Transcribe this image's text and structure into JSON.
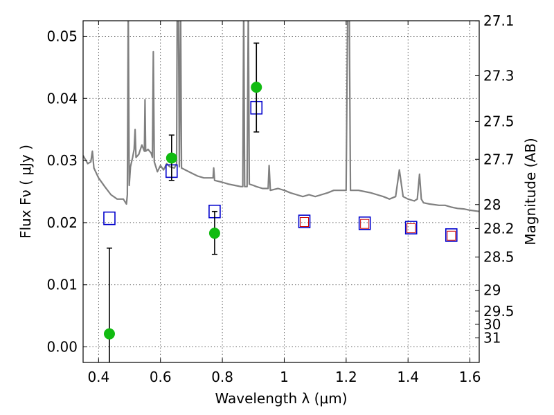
{
  "chart_data": {
    "type": "scatter",
    "xlabel": "Wavelength  λ (μm)",
    "ylabel": "Flux  Fν  ( μJy )",
    "ylabel_right": "Magnitude (AB)",
    "xlim": [
      0.35,
      1.63
    ],
    "ylim": [
      -0.0025,
      0.0525
    ],
    "grid": true,
    "x_ticks": [
      0.4,
      0.6,
      0.8,
      1.0,
      1.2,
      1.4,
      1.6
    ],
    "x_tick_labels": [
      "0.4",
      "0.6",
      "0.8",
      "1",
      "1.2",
      "1.4",
      "1.6"
    ],
    "y_ticks": [
      0.0,
      0.01,
      0.02,
      0.03,
      0.04,
      0.05
    ],
    "y_tick_labels": [
      "0.00",
      "0.01",
      "0.02",
      "0.03",
      "0.04",
      "0.05"
    ],
    "right_ticks": [
      {
        "label": "27.1",
        "mag": 27.1
      },
      {
        "label": "27.3",
        "mag": 27.3
      },
      {
        "label": "27.5",
        "mag": 27.5
      },
      {
        "label": "27.7",
        "mag": 27.7
      },
      {
        "label": "28",
        "mag": 28.0
      },
      {
        "label": "28.2",
        "mag": 28.2
      },
      {
        "label": "28.5",
        "mag": 28.5
      },
      {
        "label": "29",
        "mag": 29.0
      },
      {
        "label": "29.5",
        "mag": 29.5
      },
      {
        "label": "30",
        "mag": 30.0
      },
      {
        "label": "31",
        "mag": 31.0
      }
    ],
    "series": [
      {
        "kind": "observed",
        "points": [
          {
            "x": 0.435,
            "y": 0.0021,
            "yerr_low": 0.0141,
            "yerr_high": 0.0138
          },
          {
            "x": 0.636,
            "y": 0.0304,
            "yerr_low": 0.0036,
            "yerr_high": 0.0037
          },
          {
            "x": 0.775,
            "y": 0.0183,
            "yerr_low": 0.0034,
            "yerr_high": 0.0035
          },
          {
            "x": 0.91,
            "y": 0.0418,
            "yerr_low": 0.0072,
            "yerr_high": 0.0071
          }
        ]
      },
      {
        "kind": "model_photometry",
        "points": [
          {
            "x": 0.435,
            "y": 0.0207
          },
          {
            "x": 0.636,
            "y": 0.0283
          },
          {
            "x": 0.775,
            "y": 0.0218
          },
          {
            "x": 0.91,
            "y": 0.0385
          },
          {
            "x": 1.065,
            "y": 0.0202
          },
          {
            "x": 1.26,
            "y": 0.0199
          },
          {
            "x": 1.41,
            "y": 0.0192
          },
          {
            "x": 1.54,
            "y": 0.018
          }
        ]
      },
      {
        "kind": "model_photometry_inner",
        "points": [
          {
            "x": 1.065,
            "y": 0.0201
          },
          {
            "x": 1.26,
            "y": 0.0198
          },
          {
            "x": 1.41,
            "y": 0.0191
          },
          {
            "x": 1.54,
            "y": 0.0179
          }
        ]
      },
      {
        "kind": "model_spectrum",
        "points": [
          {
            "x": 0.35,
            "y": 0.0308
          },
          {
            "x": 0.365,
            "y": 0.0295
          },
          {
            "x": 0.375,
            "y": 0.0298
          },
          {
            "x": 0.38,
            "y": 0.0315
          },
          {
            "x": 0.385,
            "y": 0.0288
          },
          {
            "x": 0.4,
            "y": 0.0272
          },
          {
            "x": 0.42,
            "y": 0.0258
          },
          {
            "x": 0.44,
            "y": 0.0245
          },
          {
            "x": 0.46,
            "y": 0.0238
          },
          {
            "x": 0.48,
            "y": 0.0238
          },
          {
            "x": 0.49,
            "y": 0.023
          },
          {
            "x": 0.493,
            "y": 0.0245
          },
          {
            "x": 0.496,
            "y": 0.055
          },
          {
            "x": 0.499,
            "y": 0.026
          },
          {
            "x": 0.503,
            "y": 0.029
          },
          {
            "x": 0.51,
            "y": 0.0305
          },
          {
            "x": 0.515,
            "y": 0.0318
          },
          {
            "x": 0.518,
            "y": 0.035
          },
          {
            "x": 0.521,
            "y": 0.0305
          },
          {
            "x": 0.53,
            "y": 0.031
          },
          {
            "x": 0.54,
            "y": 0.0325
          },
          {
            "x": 0.548,
            "y": 0.0315
          },
          {
            "x": 0.55,
            "y": 0.0398
          },
          {
            "x": 0.552,
            "y": 0.0315
          },
          {
            "x": 0.56,
            "y": 0.0318
          },
          {
            "x": 0.57,
            "y": 0.0312
          },
          {
            "x": 0.574,
            "y": 0.0305
          },
          {
            "x": 0.577,
            "y": 0.0475
          },
          {
            "x": 0.58,
            "y": 0.0298
          },
          {
            "x": 0.59,
            "y": 0.0282
          },
          {
            "x": 0.6,
            "y": 0.0292
          },
          {
            "x": 0.61,
            "y": 0.0285
          },
          {
            "x": 0.62,
            "y": 0.0295
          },
          {
            "x": 0.63,
            "y": 0.029
          },
          {
            "x": 0.645,
            "y": 0.0288
          },
          {
            "x": 0.652,
            "y": 0.0295
          },
          {
            "x": 0.654,
            "y": 0.055
          },
          {
            "x": 0.658,
            "y": 0.055
          },
          {
            "x": 0.661,
            "y": 0.029
          },
          {
            "x": 0.665,
            "y": 0.055
          },
          {
            "x": 0.668,
            "y": 0.0288
          },
          {
            "x": 0.68,
            "y": 0.0285
          },
          {
            "x": 0.7,
            "y": 0.028
          },
          {
            "x": 0.72,
            "y": 0.0275
          },
          {
            "x": 0.74,
            "y": 0.0272
          },
          {
            "x": 0.76,
            "y": 0.0272
          },
          {
            "x": 0.77,
            "y": 0.0272
          },
          {
            "x": 0.772,
            "y": 0.0288
          },
          {
            "x": 0.775,
            "y": 0.0268
          },
          {
            "x": 0.8,
            "y": 0.0265
          },
          {
            "x": 0.82,
            "y": 0.0262
          },
          {
            "x": 0.84,
            "y": 0.026
          },
          {
            "x": 0.86,
            "y": 0.0258
          },
          {
            "x": 0.866,
            "y": 0.0258
          },
          {
            "x": 0.869,
            "y": 0.055
          },
          {
            "x": 0.872,
            "y": 0.0258
          },
          {
            "x": 0.88,
            "y": 0.0258
          },
          {
            "x": 0.884,
            "y": 0.055
          },
          {
            "x": 0.887,
            "y": 0.0262
          },
          {
            "x": 0.9,
            "y": 0.026
          },
          {
            "x": 0.91,
            "y": 0.0258
          },
          {
            "x": 0.93,
            "y": 0.0255
          },
          {
            "x": 0.948,
            "y": 0.0255
          },
          {
            "x": 0.951,
            "y": 0.0292
          },
          {
            "x": 0.955,
            "y": 0.0252
          },
          {
            "x": 0.98,
            "y": 0.0255
          },
          {
            "x": 1.0,
            "y": 0.0252
          },
          {
            "x": 1.02,
            "y": 0.0248
          },
          {
            "x": 1.04,
            "y": 0.0245
          },
          {
            "x": 1.06,
            "y": 0.0242
          },
          {
            "x": 1.08,
            "y": 0.0245
          },
          {
            "x": 1.1,
            "y": 0.0242
          },
          {
            "x": 1.12,
            "y": 0.0245
          },
          {
            "x": 1.14,
            "y": 0.0248
          },
          {
            "x": 1.16,
            "y": 0.0252
          },
          {
            "x": 1.18,
            "y": 0.0252
          },
          {
            "x": 1.2,
            "y": 0.0252
          },
          {
            "x": 1.205,
            "y": 0.055
          },
          {
            "x": 1.21,
            "y": 0.055
          },
          {
            "x": 1.214,
            "y": 0.0252
          },
          {
            "x": 1.24,
            "y": 0.0252
          },
          {
            "x": 1.26,
            "y": 0.025
          },
          {
            "x": 1.28,
            "y": 0.0248
          },
          {
            "x": 1.3,
            "y": 0.0245
          },
          {
            "x": 1.32,
            "y": 0.0242
          },
          {
            "x": 1.34,
            "y": 0.0238
          },
          {
            "x": 1.36,
            "y": 0.0242
          },
          {
            "x": 1.372,
            "y": 0.0285
          },
          {
            "x": 1.384,
            "y": 0.0242
          },
          {
            "x": 1.4,
            "y": 0.0238
          },
          {
            "x": 1.42,
            "y": 0.0235
          },
          {
            "x": 1.43,
            "y": 0.0238
          },
          {
            "x": 1.437,
            "y": 0.0278
          },
          {
            "x": 1.443,
            "y": 0.0238
          },
          {
            "x": 1.45,
            "y": 0.0232
          },
          {
            "x": 1.47,
            "y": 0.023
          },
          {
            "x": 1.5,
            "y": 0.0228
          },
          {
            "x": 1.52,
            "y": 0.0228
          },
          {
            "x": 1.54,
            "y": 0.0225
          },
          {
            "x": 1.56,
            "y": 0.0223
          },
          {
            "x": 1.58,
            "y": 0.0222
          },
          {
            "x": 1.6,
            "y": 0.022
          },
          {
            "x": 1.63,
            "y": 0.0218
          }
        ]
      }
    ],
    "colors": {
      "observed": "#11bb11",
      "model_square": "#0000cc",
      "inner_square": "#cc0000",
      "spectrum": "#808080",
      "errorbar": "#000000"
    }
  }
}
